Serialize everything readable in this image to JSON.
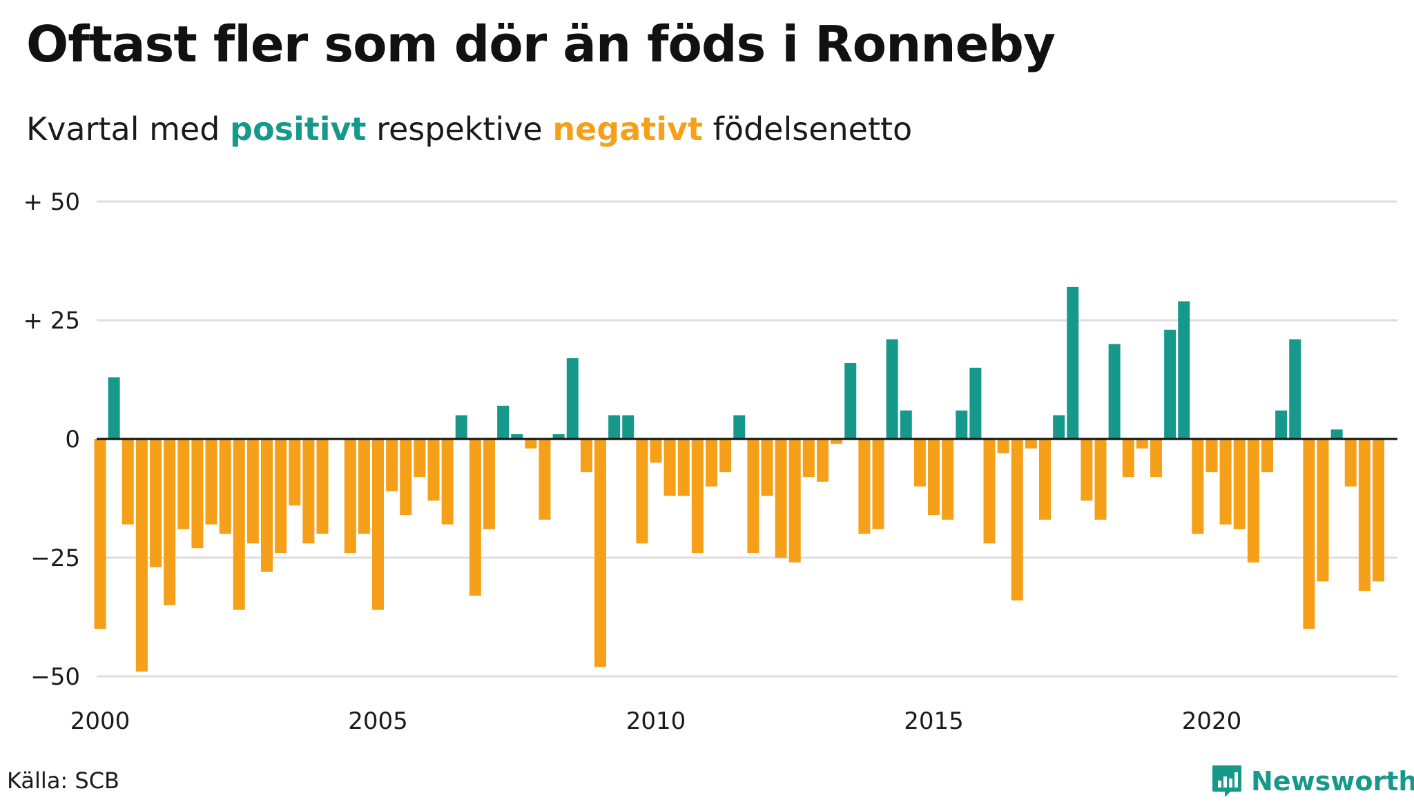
{
  "title": "Oftast fler som dör än föds i Ronneby",
  "subtitle": {
    "prefix": "Kvartal med ",
    "positive_word": "positivt",
    "middle": " respektive ",
    "negative_word": "negativt",
    "suffix": " födelsenetto"
  },
  "source": "Källa: SCB",
  "brand": {
    "name": "Newsworthy",
    "icon": "newsworthy-logo-icon"
  },
  "colors": {
    "positive": "#16998a",
    "negative": "#f6a01a",
    "grid": "#dedede",
    "axis": "#1a1a1a"
  },
  "chart_data": {
    "type": "bar",
    "title": "Oftast fler som dör än föds i Ronneby",
    "subtitle": "Kvartal med positivt respektive negativt födelsenetto",
    "x_start": 2000,
    "x_end": 2023.25,
    "quarter_step": 0.25,
    "ylim": [
      -50,
      50
    ],
    "y_ticks": [
      50,
      25,
      0,
      -25,
      -50
    ],
    "y_tick_labels": [
      "+ 50",
      "+ 25",
      "0",
      "−25",
      "−50"
    ],
    "x_ticks": [
      2000,
      2005,
      2010,
      2015,
      2020
    ],
    "x_tick_labels": [
      "2000",
      "2005",
      "2010",
      "2015",
      "2020"
    ],
    "grid": true,
    "legend": "none",
    "values": [
      -40,
      13,
      -18,
      -49,
      -27,
      -35,
      -19,
      -23,
      -18,
      -20,
      -36,
      -22,
      -28,
      -24,
      -14,
      -22,
      -20,
      0,
      -24,
      -20,
      -36,
      -11,
      -16,
      -8,
      -13,
      -18,
      5,
      -33,
      -19,
      7,
      1,
      -2,
      -17,
      1,
      17,
      -7,
      -48,
      5,
      5,
      -22,
      -5,
      -12,
      -12,
      -24,
      -10,
      -7,
      5,
      -24,
      -12,
      -25,
      -26,
      -8,
      -9,
      -1,
      16,
      -20,
      -19,
      21,
      6,
      -10,
      -16,
      -17,
      6,
      15,
      -22,
      -3,
      -34,
      -2,
      -17,
      5,
      32,
      -13,
      -17,
      20,
      -8,
      -2,
      -8,
      23,
      29,
      -20,
      -7,
      -18,
      -19,
      -26,
      -7,
      6,
      21,
      -40,
      -30,
      2,
      -10,
      -32,
      -30
    ]
  }
}
